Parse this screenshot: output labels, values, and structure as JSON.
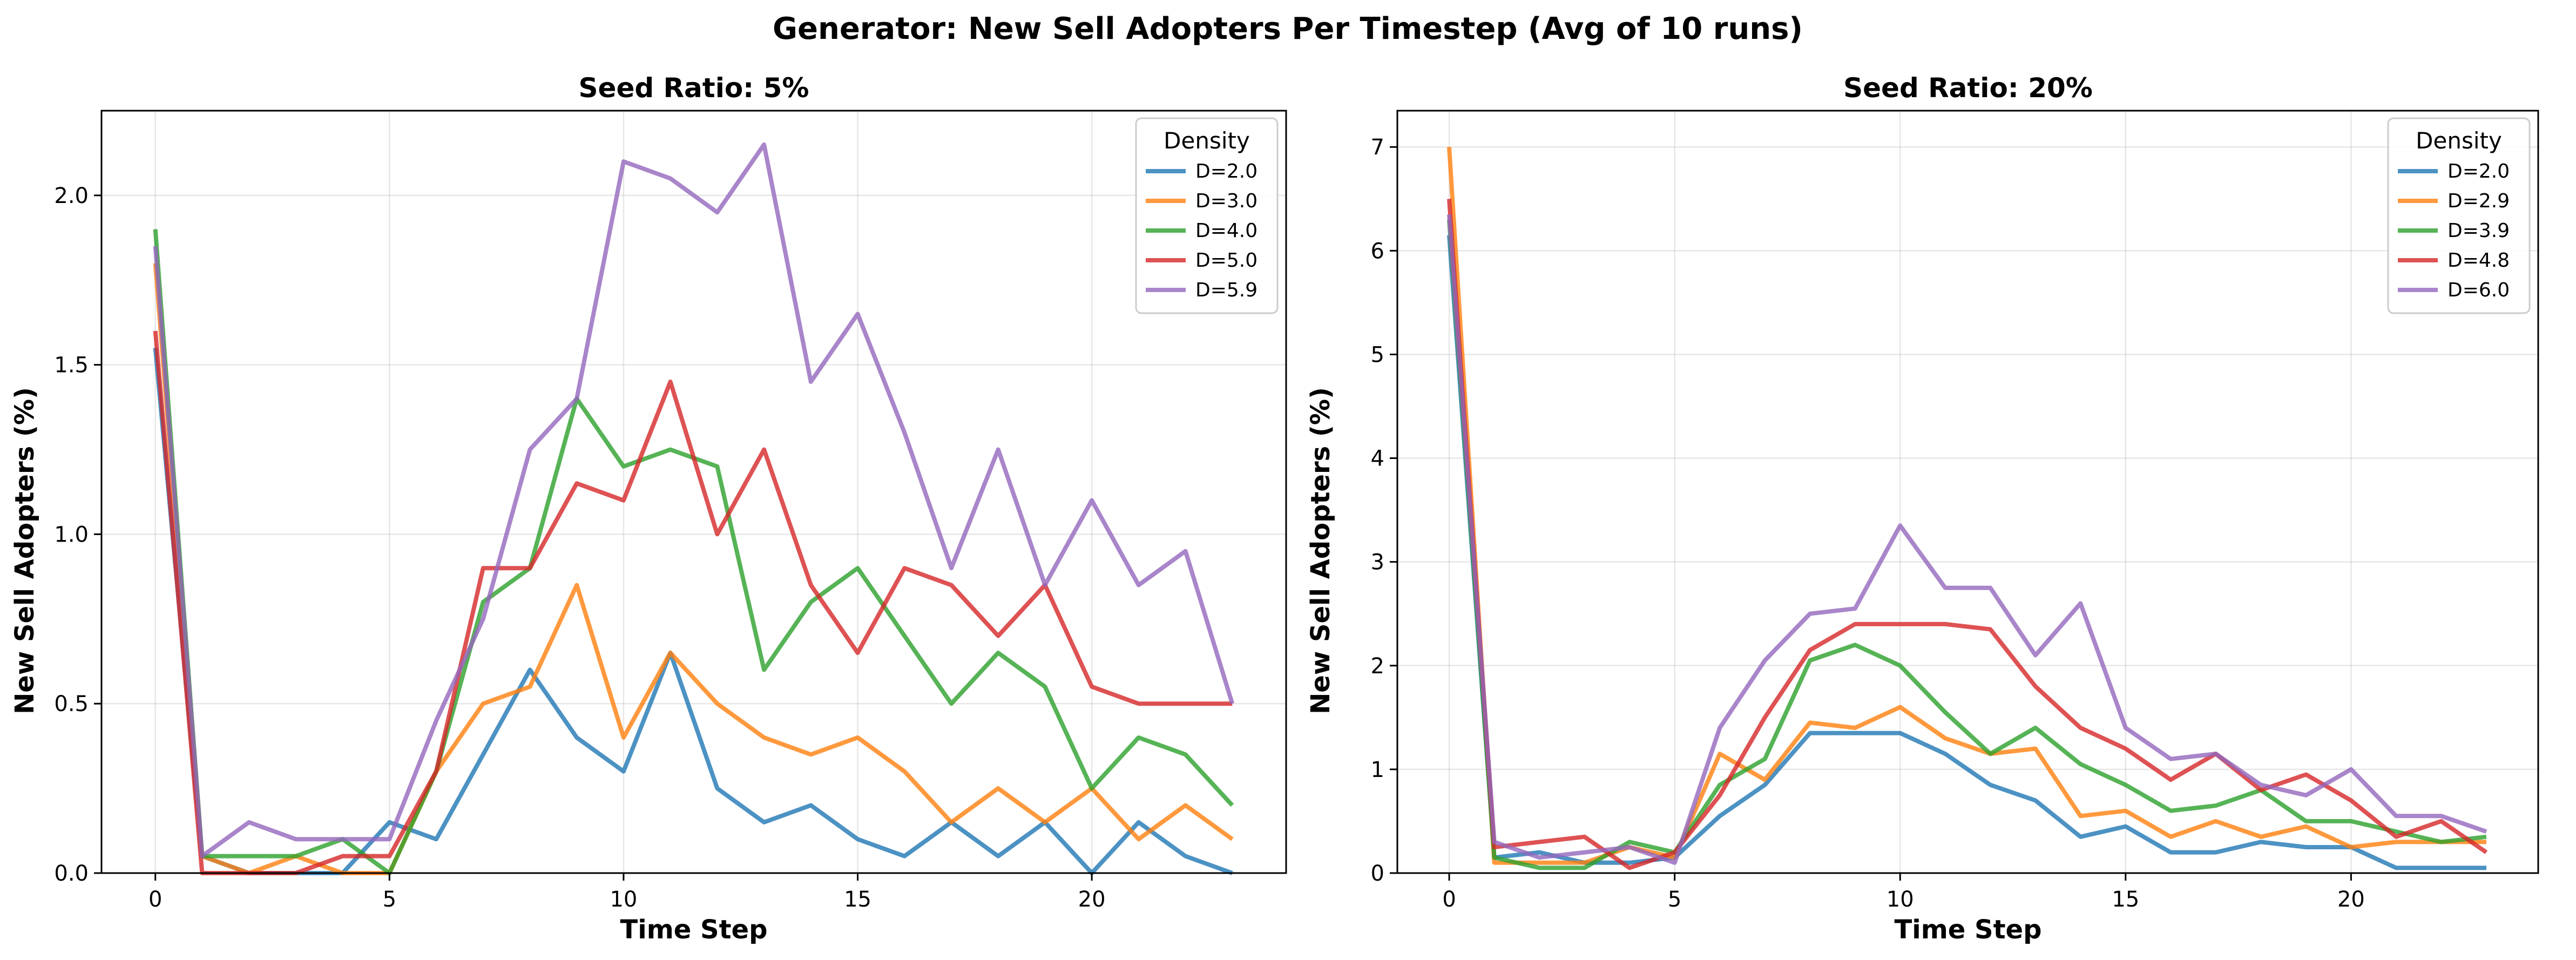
{
  "figure": {
    "title": "Generator: New Sell Adopters Per Timestep (Avg of 10 runs)"
  },
  "chart_data": [
    {
      "type": "line",
      "title": "Seed Ratio: 5%",
      "xlabel": "Time Step",
      "ylabel": "New Sell Adopters (%)",
      "xlim": [
        -1.15,
        24.15
      ],
      "ylim": [
        0,
        2.25
      ],
      "xticks": [
        0,
        5,
        10,
        15,
        20
      ],
      "yticks": [
        0.0,
        0.5,
        1.0,
        1.5,
        2.0
      ],
      "grid": true,
      "legend": {
        "title": "Density",
        "position": "top-right"
      },
      "x": [
        0,
        1,
        2,
        3,
        4,
        5,
        6,
        7,
        8,
        9,
        10,
        11,
        12,
        13,
        14,
        15,
        16,
        17,
        18,
        19,
        20,
        21,
        22,
        23
      ],
      "series": [
        {
          "name": "D=2.0",
          "color": "#1f77b4",
          "values": [
            1.55,
            0.05,
            0.0,
            0.0,
            0.0,
            0.15,
            0.1,
            0.35,
            0.6,
            0.4,
            0.3,
            0.65,
            0.25,
            0.15,
            0.2,
            0.1,
            0.05,
            0.15,
            0.05,
            0.15,
            0.0,
            0.15,
            0.05,
            0.0
          ]
        },
        {
          "name": "D=3.0",
          "color": "#ff7f0e",
          "values": [
            1.8,
            0.05,
            0.0,
            0.05,
            0.0,
            0.0,
            0.3,
            0.5,
            0.55,
            0.85,
            0.4,
            0.65,
            0.5,
            0.4,
            0.35,
            0.4,
            0.3,
            0.15,
            0.25,
            0.15,
            0.25,
            0.1,
            0.2,
            0.1
          ]
        },
        {
          "name": "D=4.0",
          "color": "#2ca02c",
          "values": [
            1.9,
            0.05,
            0.05,
            0.05,
            0.1,
            0.0,
            0.3,
            0.8,
            0.9,
            1.4,
            1.2,
            1.25,
            1.2,
            0.6,
            0.8,
            0.9,
            0.7,
            0.5,
            0.65,
            0.55,
            0.25,
            0.4,
            0.35,
            0.2
          ]
        },
        {
          "name": "D=5.0",
          "color": "#d62728",
          "values": [
            1.6,
            0.0,
            0.0,
            0.0,
            0.05,
            0.05,
            0.3,
            0.9,
            0.9,
            1.15,
            1.1,
            1.45,
            1.0,
            1.25,
            0.85,
            0.65,
            0.9,
            0.85,
            0.7,
            0.85,
            0.55,
            0.5,
            0.5,
            0.5
          ]
        },
        {
          "name": "D=5.9",
          "color": "#9467bd",
          "values": [
            1.85,
            0.05,
            0.15,
            0.1,
            0.1,
            0.1,
            0.45,
            0.75,
            1.25,
            1.4,
            2.1,
            2.05,
            1.95,
            2.15,
            1.45,
            1.65,
            1.3,
            0.9,
            1.25,
            0.85,
            1.1,
            0.85,
            0.95,
            0.5
          ]
        }
      ]
    },
    {
      "type": "line",
      "title": "Seed Ratio: 20%",
      "xlabel": "Time Step",
      "ylabel": "New Sell Adopters (%)",
      "xlim": [
        -1.15,
        24.15
      ],
      "ylim": [
        0,
        7.35
      ],
      "xticks": [
        0,
        5,
        10,
        15,
        20
      ],
      "yticks": [
        0,
        1,
        2,
        3,
        4,
        5,
        6,
        7
      ],
      "grid": true,
      "legend": {
        "title": "Density",
        "position": "top-right"
      },
      "x": [
        0,
        1,
        2,
        3,
        4,
        5,
        6,
        7,
        8,
        9,
        10,
        11,
        12,
        13,
        14,
        15,
        16,
        17,
        18,
        19,
        20,
        21,
        22,
        23
      ],
      "series": [
        {
          "name": "D=2.0",
          "color": "#1f77b4",
          "values": [
            6.15,
            0.15,
            0.2,
            0.1,
            0.1,
            0.15,
            0.55,
            0.85,
            1.35,
            1.35,
            1.35,
            1.15,
            0.85,
            0.7,
            0.35,
            0.45,
            0.2,
            0.2,
            0.3,
            0.25,
            0.25,
            0.05,
            0.05,
            0.05
          ]
        },
        {
          "name": "D=2.9",
          "color": "#ff7f0e",
          "values": [
            7.0,
            0.1,
            0.1,
            0.1,
            0.25,
            0.15,
            1.15,
            0.9,
            1.45,
            1.4,
            1.6,
            1.3,
            1.15,
            1.2,
            0.55,
            0.6,
            0.35,
            0.5,
            0.35,
            0.45,
            0.25,
            0.3,
            0.3,
            0.3
          ]
        },
        {
          "name": "D=3.9",
          "color": "#2ca02c",
          "values": [
            6.3,
            0.15,
            0.05,
            0.05,
            0.3,
            0.2,
            0.85,
            1.1,
            2.05,
            2.2,
            2.0,
            1.55,
            1.15,
            1.4,
            1.05,
            0.85,
            0.6,
            0.65,
            0.8,
            0.5,
            0.5,
            0.4,
            0.3,
            0.35
          ]
        },
        {
          "name": "D=4.8",
          "color": "#d62728",
          "values": [
            6.5,
            0.25,
            0.3,
            0.35,
            0.05,
            0.2,
            0.75,
            1.5,
            2.15,
            2.4,
            2.4,
            2.4,
            2.35,
            1.8,
            1.4,
            1.2,
            0.9,
            1.15,
            0.8,
            0.95,
            0.7,
            0.35,
            0.5,
            0.2
          ]
        },
        {
          "name": "D=6.0",
          "color": "#9467bd",
          "values": [
            6.35,
            0.3,
            0.15,
            0.2,
            0.25,
            0.1,
            1.4,
            2.05,
            2.5,
            2.55,
            3.35,
            2.75,
            2.75,
            2.1,
            2.6,
            1.4,
            1.1,
            1.15,
            0.85,
            0.75,
            1.0,
            0.55,
            0.55,
            0.4
          ]
        }
      ]
    }
  ]
}
